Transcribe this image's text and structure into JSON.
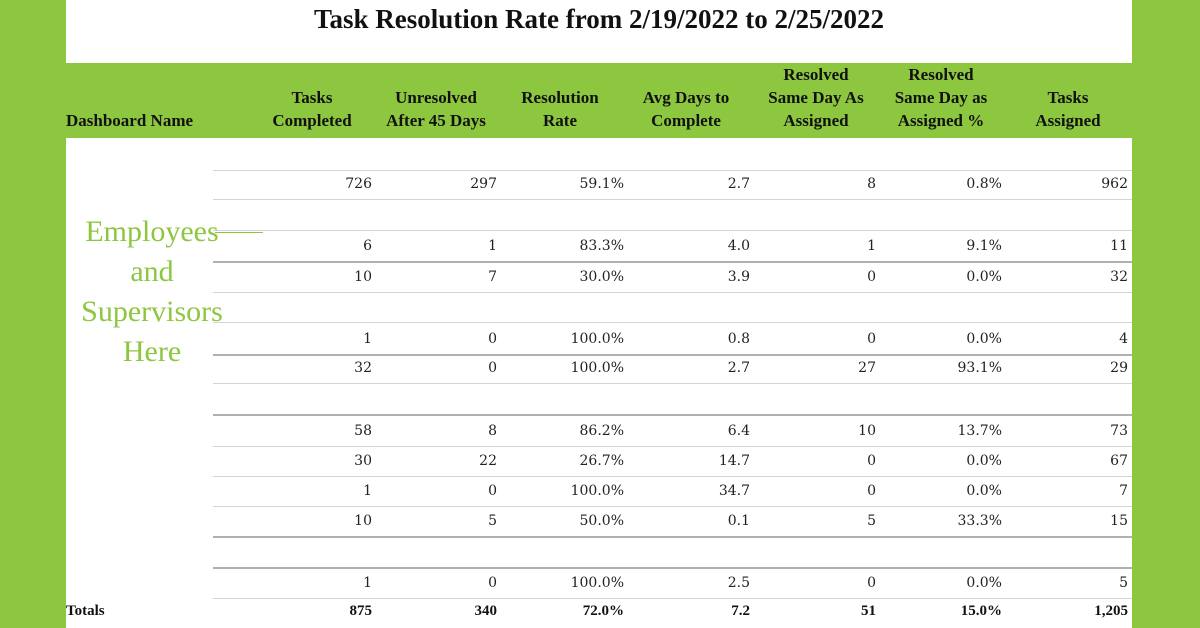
{
  "title": "Task Resolution Rate from 2/19/2022 to 2/25/2022",
  "colors": {
    "accent": "#8dc63f",
    "panel": "#ffffff"
  },
  "overlay_text": [
    "Employees",
    "and",
    "Supervisors",
    "Here"
  ],
  "columns": [
    [
      "Dashboard Name"
    ],
    [
      "Tasks",
      "Completed"
    ],
    [
      "Unresolved",
      "After 45 Days"
    ],
    [
      "Resolution",
      "Rate"
    ],
    [
      "Avg Days to",
      "Complete"
    ],
    [
      "Resolved",
      "Same Day As",
      "Assigned"
    ],
    [
      "Resolved",
      "Same Day as",
      "Assigned %"
    ],
    [
      "Tasks",
      "Assigned"
    ]
  ],
  "rows": [
    [
      "",
      "",
      "",
      "",
      "",
      "",
      "",
      ""
    ],
    [
      "",
      "726",
      "297",
      "59.1%",
      "2.7",
      "8",
      "0.8%",
      "962"
    ],
    [
      "",
      "",
      "",
      "",
      "",
      "",
      "",
      ""
    ],
    [
      "",
      "6",
      "1",
      "83.3%",
      "4.0",
      "1",
      "9.1%",
      "11"
    ],
    [
      "",
      "10",
      "7",
      "30.0%",
      "3.9",
      "0",
      "0.0%",
      "32"
    ],
    [
      "",
      "",
      "",
      "",
      "",
      "",
      "",
      ""
    ],
    [
      "",
      "1",
      "0",
      "100.0%",
      "0.8",
      "0",
      "0.0%",
      "4"
    ],
    [
      "",
      "32",
      "0",
      "100.0%",
      "2.7",
      "27",
      "93.1%",
      "29"
    ],
    [
      "",
      "",
      "",
      "",
      "",
      "",
      "",
      ""
    ],
    [
      "",
      "58",
      "8",
      "86.2%",
      "6.4",
      "10",
      "13.7%",
      "73"
    ],
    [
      "",
      "30",
      "22",
      "26.7%",
      "14.7",
      "0",
      "0.0%",
      "67"
    ],
    [
      "",
      "1",
      "0",
      "100.0%",
      "34.7",
      "0",
      "0.0%",
      "7"
    ],
    [
      "",
      "10",
      "5",
      "50.0%",
      "0.1",
      "5",
      "33.3%",
      "15"
    ],
    [
      "",
      "",
      "",
      "",
      "",
      "",
      "",
      ""
    ],
    [
      "",
      "1",
      "0",
      "100.0%",
      "2.5",
      "0",
      "0.0%",
      "5"
    ]
  ],
  "totals": [
    "Totals",
    "875",
    "340",
    "72.0%",
    "7.2",
    "51",
    "15.0%",
    "1,205"
  ]
}
